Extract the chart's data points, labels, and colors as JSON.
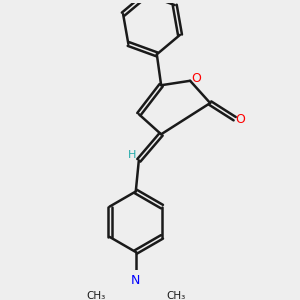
{
  "background_color": "#eeeeee",
  "bond_color": "#1a1a1a",
  "oxygen_color": "#ff0000",
  "nitrogen_color": "#0000ff",
  "hydrogen_color": "#22aaaa",
  "line_width": 1.8,
  "dbo": 0.018,
  "figsize": [
    3.0,
    3.0
  ],
  "dpi": 100,
  "xlim": [
    -0.1,
    1.0
  ],
  "ylim": [
    -0.15,
    1.05
  ]
}
